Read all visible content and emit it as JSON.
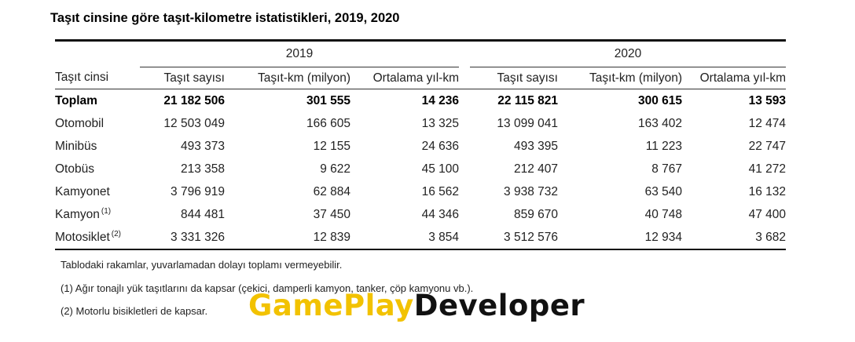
{
  "title": "Taşıt cinsine göre taşıt-kilometre istatistikleri, 2019, 2020",
  "years": [
    "2019",
    "2020"
  ],
  "headers": {
    "type": "Taşıt cinsi",
    "count": "Taşıt sayısı",
    "km": "Taşıt-km (milyon)",
    "avg": "Ortalama yıl-km"
  },
  "rows": [
    {
      "name": "Toplam",
      "sup": "",
      "v": [
        "21 182 506",
        "301 555",
        "14 236",
        "22 115 821",
        "300 615",
        "13 593"
      ]
    },
    {
      "name": "Otomobil",
      "sup": "",
      "v": [
        "12 503 049",
        "166 605",
        "13 325",
        "13 099 041",
        "163 402",
        "12 474"
      ]
    },
    {
      "name": "Minibüs",
      "sup": "",
      "v": [
        "493 373",
        "12 155",
        "24 636",
        "493 395",
        "11 223",
        "22 747"
      ]
    },
    {
      "name": "Otobüs",
      "sup": "",
      "v": [
        "213 358",
        "9 622",
        "45 100",
        "212 407",
        "8 767",
        "41 272"
      ]
    },
    {
      "name": "Kamyonet",
      "sup": "",
      "v": [
        "3 796 919",
        "62 884",
        "16 562",
        "3 938 732",
        "63 540",
        "16 132"
      ]
    },
    {
      "name": "Kamyon",
      "sup": "(1)",
      "v": [
        "844 481",
        "37 450",
        "44 346",
        "859 670",
        "40 748",
        "47 400"
      ]
    },
    {
      "name": "Motosiklet",
      "sup": "(2)",
      "v": [
        "3 331 326",
        "12 839",
        "3 854",
        "3 512 576",
        "12 934",
        "3 682"
      ]
    }
  ],
  "notes": [
    "Tablodaki rakamlar, yuvarlamadan dolayı toplamı vermeyebilir.",
    "(1) Ağır tonajlı yük  taşıtlarını da kapsar (çekici, damperli kamyon, tanker, çöp kamyonu vb.).",
    "(2) Motorlu bisikletleri de kapsar."
  ],
  "watermark": {
    "part1": "GamePlay",
    "part2": "Developer",
    "color1": "#f2c200",
    "color2": "#111111"
  }
}
